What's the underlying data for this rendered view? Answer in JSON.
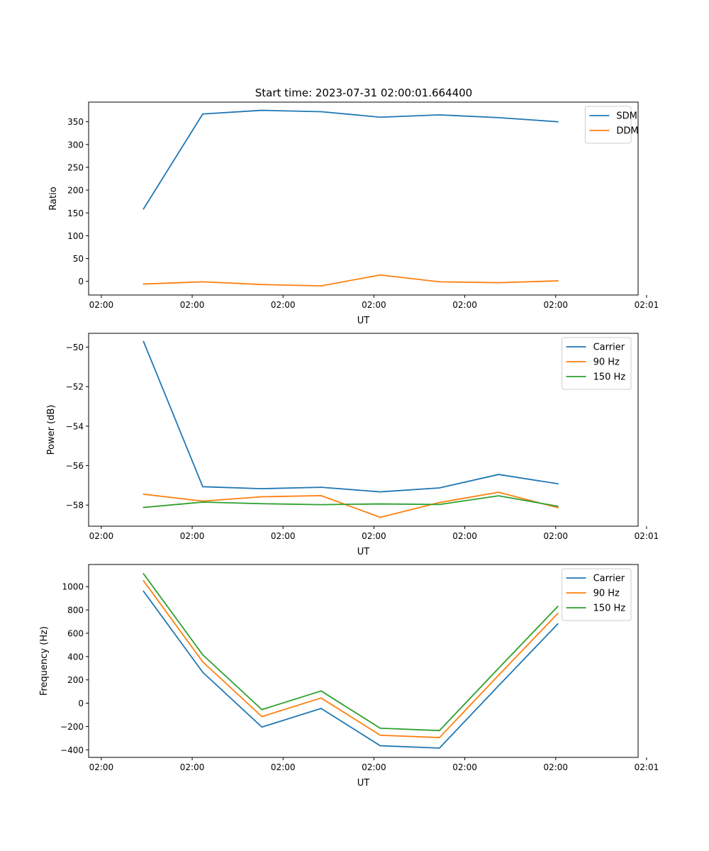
{
  "figure_title": "Start time: 2023-07-31 02:00:01.664400",
  "colors": {
    "blue": "#1f77b4",
    "orange": "#ff7f0e",
    "green": "#2ca02c"
  },
  "chart_data": [
    {
      "type": "line",
      "title": "Start time: 2023-07-31 02:00:01.664400",
      "xlabel": "UT",
      "ylabel": "Ratio",
      "x": [
        0.76,
        1.04,
        1.32,
        1.6,
        1.88,
        2.16,
        2.44,
        2.72
      ],
      "xlim": [
        0.5,
        3.1
      ],
      "xticks": [
        0.56,
        0.99,
        1.42,
        1.85,
        2.28,
        2.71,
        3.14
      ],
      "xticklabels": [
        "02:00",
        "02:00",
        "02:00",
        "02:00",
        "02:00",
        "02:00",
        "02:01"
      ],
      "ylim": [
        -30,
        393
      ],
      "yticks": [
        0,
        50,
        100,
        150,
        200,
        250,
        300,
        350
      ],
      "yticklabels": [
        "0",
        "50",
        "100",
        "150",
        "200",
        "250",
        "300",
        "350"
      ],
      "legend_position": "upper right",
      "series": [
        {
          "name": "SDM",
          "color": "#1f77b4",
          "values": [
            159,
            367,
            375,
            372,
            360,
            365,
            359,
            350
          ]
        },
        {
          "name": "DDM",
          "color": "#ff7f0e",
          "values": [
            -6,
            -1,
            -7,
            -10,
            14,
            -1,
            -3,
            1
          ]
        }
      ]
    },
    {
      "type": "line",
      "title": "",
      "xlabel": "UT",
      "ylabel": "Power (dB)",
      "x": [
        0.76,
        1.04,
        1.32,
        1.6,
        1.88,
        2.16,
        2.44,
        2.72
      ],
      "xlim": [
        0.5,
        3.1
      ],
      "xticks": [
        0.56,
        0.99,
        1.42,
        1.85,
        2.28,
        2.71,
        3.14
      ],
      "xticklabels": [
        "02:00",
        "02:00",
        "02:00",
        "02:00",
        "02:00",
        "02:00",
        "02:01"
      ],
      "ylim": [
        -59.07,
        -49.3
      ],
      "yticks": [
        -58,
        -56,
        -54,
        -52,
        -50
      ],
      "yticklabels": [
        "−58",
        "−56",
        "−54",
        "−52",
        "−50"
      ],
      "legend_position": "upper right",
      "series": [
        {
          "name": "Carrier",
          "color": "#1f77b4",
          "values": [
            -49.72,
            -57.07,
            -57.17,
            -57.1,
            -57.33,
            -57.13,
            -56.45,
            -56.92
          ]
        },
        {
          "name": "90 Hz",
          "color": "#ff7f0e",
          "values": [
            -57.45,
            -57.8,
            -57.58,
            -57.52,
            -58.62,
            -57.87,
            -57.35,
            -58.13
          ]
        },
        {
          "name": "150 Hz",
          "color": "#2ca02c",
          "values": [
            -58.12,
            -57.85,
            -57.93,
            -57.98,
            -57.94,
            -57.97,
            -57.53,
            -58.06
          ]
        }
      ]
    },
    {
      "type": "line",
      "title": "",
      "xlabel": "UT",
      "ylabel": "Frequency (Hz)",
      "x": [
        0.76,
        1.04,
        1.32,
        1.6,
        1.88,
        2.16,
        2.44,
        2.72
      ],
      "xlim": [
        0.5,
        3.1
      ],
      "xticks": [
        0.56,
        0.99,
        1.42,
        1.85,
        2.28,
        2.71,
        3.14
      ],
      "xticklabels": [
        "02:00",
        "02:00",
        "02:00",
        "02:00",
        "02:00",
        "02:00",
        "02:01"
      ],
      "ylim": [
        -465,
        1190
      ],
      "yticks": [
        -400,
        -200,
        0,
        200,
        400,
        600,
        800,
        1000
      ],
      "yticklabels": [
        "−400",
        "−200",
        "0",
        "200",
        "400",
        "600",
        "800",
        "1000"
      ],
      "legend_position": "upper right",
      "series": [
        {
          "name": "Carrier",
          "color": "#1f77b4",
          "values": [
            960,
            265,
            -205,
            -45,
            -365,
            -385,
            150,
            680
          ]
        },
        {
          "name": "90 Hz",
          "color": "#ff7f0e",
          "values": [
            1050,
            355,
            -115,
            45,
            -275,
            -295,
            240,
            770
          ]
        },
        {
          "name": "150 Hz",
          "color": "#2ca02c",
          "values": [
            1110,
            415,
            -55,
            105,
            -215,
            -235,
            300,
            830
          ]
        }
      ]
    }
  ]
}
